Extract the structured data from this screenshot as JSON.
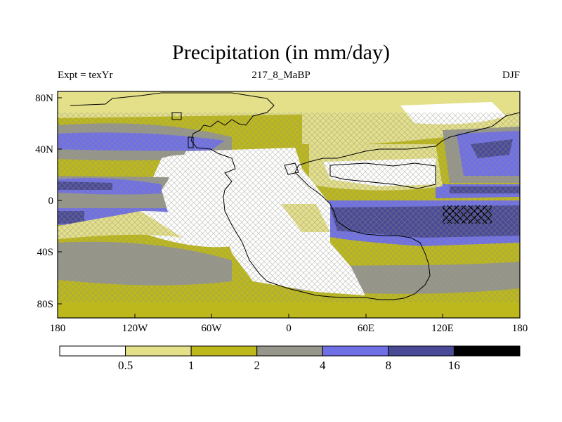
{
  "map": {
    "title": "Precipitation (in mm/day)",
    "subtitle_left": "Expt = texYr",
    "subtitle_center": "217_8_MaBP",
    "subtitle_right": "DJF",
    "projection": "cylindrical equidistant",
    "lon_range": [
      -180,
      180
    ],
    "lat_range": [
      -90,
      90
    ],
    "x_ticks": [
      "180",
      "120W",
      "60W",
      "0",
      "60E",
      "120E",
      "180"
    ],
    "y_ticks": [
      "80N",
      "40N",
      "0",
      "40S",
      "80S"
    ]
  },
  "colorbar": {
    "levels": [
      "0.5",
      "1",
      "2",
      "4",
      "8",
      "16"
    ],
    "colors": [
      "#ffffff",
      "#e4e08a",
      "#bdb91c",
      "#96968a",
      "#7070e6",
      "#4a4a96",
      "#000000"
    ]
  }
}
